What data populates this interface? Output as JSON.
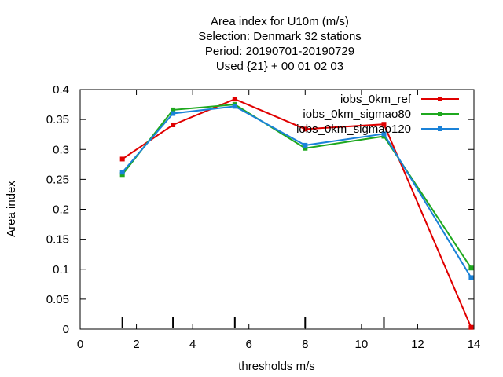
{
  "chart_data": {
    "type": "line",
    "title_lines": [
      "Area index  for U10m (m/s)",
      "Selection: Denmark     32 stations",
      "Period: 20190701-20190729",
      "Used {21} + 00 01 02 03"
    ],
    "xlabel": "thresholds m/s",
    "ylabel": "Area index",
    "xlim": [
      0,
      14
    ],
    "ylim": [
      0,
      0.4
    ],
    "xticks": [
      0,
      2,
      4,
      6,
      8,
      10,
      12,
      14
    ],
    "yticks": [
      0,
      0.05,
      0.1,
      0.15,
      0.2,
      0.25,
      0.3,
      0.35,
      0.4
    ],
    "xtick_labels": [
      "0",
      "2",
      "4",
      "6",
      "8",
      "10",
      "12",
      "14"
    ],
    "ytick_labels": [
      "0",
      "0.05",
      "0.1",
      "0.15",
      "0.2",
      "0.25",
      "0.3",
      "0.35",
      "0.4"
    ],
    "threshold_markers": [
      1.5,
      3.3,
      5.5,
      8.0,
      10.8
    ],
    "grid": false,
    "legend_position": "top-right",
    "series": [
      {
        "name": "iobs_0km_ref",
        "color": "#e00000",
        "x": [
          1.5,
          3.3,
          5.5,
          8.0,
          10.8,
          13.9
        ],
        "y": [
          0.284,
          0.341,
          0.384,
          0.334,
          0.342,
          0.003
        ]
      },
      {
        "name": "iobs_0km_sigmao80",
        "color": "#1ea81e",
        "x": [
          1.5,
          3.3,
          5.5,
          8.0,
          10.8,
          13.9
        ],
        "y": [
          0.258,
          0.366,
          0.375,
          0.302,
          0.322,
          0.102
        ]
      },
      {
        "name": "iobs_0km_sigmao120",
        "color": "#1a82d8",
        "x": [
          1.5,
          3.3,
          5.5,
          8.0,
          10.8,
          13.9
        ],
        "y": [
          0.262,
          0.36,
          0.372,
          0.307,
          0.326,
          0.086
        ]
      }
    ]
  }
}
